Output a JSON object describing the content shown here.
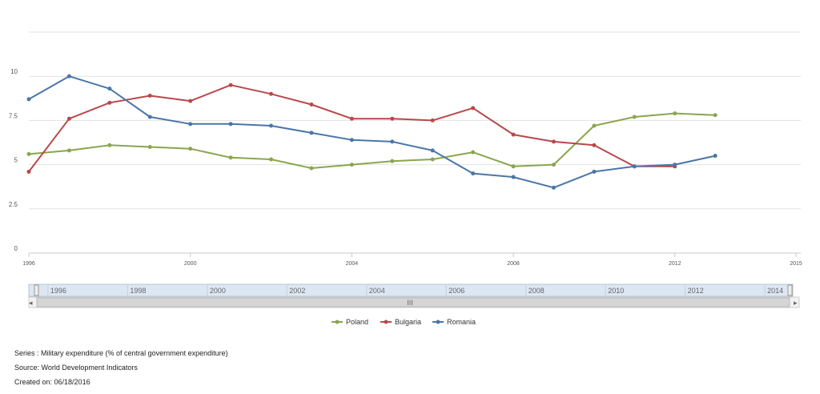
{
  "chart_data": {
    "type": "line",
    "x": [
      1996,
      1997,
      1998,
      1999,
      2000,
      2001,
      2002,
      2003,
      2004,
      2005,
      2006,
      2007,
      2008,
      2009,
      2010,
      2011,
      2012,
      2013
    ],
    "series": [
      {
        "name": "Poland",
        "color": "#8aa64c",
        "values": [
          5.6,
          5.8,
          6.1,
          6.0,
          5.9,
          5.4,
          5.3,
          4.8,
          5.0,
          5.2,
          5.3,
          5.7,
          4.9,
          5.0,
          7.2,
          7.7,
          7.9,
          7.8
        ]
      },
      {
        "name": "Bulgaria",
        "color": "#b9484a",
        "values": [
          4.6,
          7.6,
          8.5,
          8.9,
          8.6,
          9.5,
          9.0,
          8.4,
          7.6,
          7.6,
          7.5,
          8.2,
          6.7,
          6.3,
          6.1,
          4.9,
          4.9,
          null
        ]
      },
      {
        "name": "Romania",
        "color": "#4a76a8",
        "values": [
          8.7,
          10.0,
          9.3,
          7.7,
          7.3,
          7.3,
          7.2,
          6.8,
          6.4,
          6.3,
          5.8,
          4.5,
          4.3,
          3.7,
          4.6,
          4.9,
          5.0,
          5.5
        ]
      }
    ],
    "xlim": [
      1996,
      2015
    ],
    "ylim": [
      0,
      12.5
    ],
    "yticks": [
      {
        "value": 0,
        "label": "0"
      },
      {
        "value": 2.5,
        "label": "2.5"
      },
      {
        "value": 5,
        "label": "5"
      },
      {
        "value": 7.5,
        "label": "7.5"
      },
      {
        "value": 10,
        "label": "10"
      }
    ],
    "xticks": [
      {
        "value": 1996,
        "label": "1996"
      },
      {
        "value": 2000,
        "label": "2000"
      },
      {
        "value": 2004,
        "label": "2004"
      },
      {
        "value": 2008,
        "label": "2008"
      },
      {
        "value": 2012,
        "label": "2012"
      },
      {
        "value": 2015,
        "label": "2015"
      }
    ],
    "grid": true,
    "legend_position": "bottom"
  },
  "navigator": {
    "labels": [
      {
        "value": 1996,
        "label": "1996"
      },
      {
        "value": 1998,
        "label": "1998"
      },
      {
        "value": 2000,
        "label": "2000"
      },
      {
        "value": 2002,
        "label": "2002"
      },
      {
        "value": 2004,
        "label": "2004"
      },
      {
        "value": 2006,
        "label": "2006"
      },
      {
        "value": 2008,
        "label": "2008"
      },
      {
        "value": 2010,
        "label": "2010"
      },
      {
        "value": 2012,
        "label": "2012"
      },
      {
        "value": 2014,
        "label": "2014"
      }
    ]
  },
  "footer": {
    "series": "Series : Military expenditure (% of central government expenditure)",
    "source": "Source: World Development Indicators",
    "created": "Created on: 06/18/2016"
  }
}
